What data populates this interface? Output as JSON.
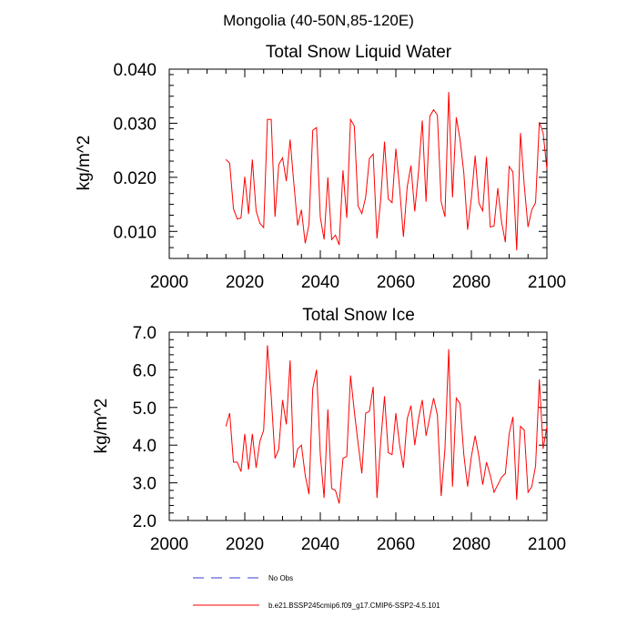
{
  "figure_title": "Mongolia (40-50N,85-120E)",
  "legend": {
    "obs_label": "No Obs",
    "obs_color": "#3b3bd6",
    "model_label": "b.e21.BSSP245cmip6.f09_g17.CMIP6-SSP2-4.5.101",
    "model_color": "#ff0000"
  },
  "chart_data": [
    {
      "type": "line",
      "title": "Total Snow Liquid Water",
      "xlabel": "",
      "ylabel": "kg/m^2",
      "xlim": [
        2000,
        2100
      ],
      "ylim": [
        0.005,
        0.04
      ],
      "xticks": [
        2000,
        2020,
        2040,
        2060,
        2080,
        2100
      ],
      "xtick_labels": [
        "2000",
        "2020",
        "2040",
        "2060",
        "2080",
        "2100"
      ],
      "yticks": [
        0.01,
        0.02,
        0.03,
        0.04
      ],
      "ytick_labels": [
        "0.010",
        "0.020",
        "0.030",
        "0.040"
      ],
      "color": "#ff0000",
      "series": [
        {
          "name": "b.e21.BSSP245cmip6.f09_g17.CMIP6-SSP2-4.5.101",
          "x_start": 2015,
          "values": [
            0.0233,
            0.0226,
            0.0142,
            0.0123,
            0.0125,
            0.0201,
            0.0132,
            0.0233,
            0.0138,
            0.0115,
            0.0107,
            0.0307,
            0.0307,
            0.0127,
            0.0224,
            0.0236,
            0.0193,
            0.027,
            0.0188,
            0.0111,
            0.014,
            0.0078,
            0.0113,
            0.0287,
            0.0292,
            0.0126,
            0.0085,
            0.02,
            0.0085,
            0.0093,
            0.0075,
            0.0213,
            0.0125,
            0.0307,
            0.0295,
            0.0147,
            0.0133,
            0.0163,
            0.0235,
            0.0243,
            0.0087,
            0.016,
            0.0266,
            0.016,
            0.0153,
            0.0253,
            0.018,
            0.009,
            0.0182,
            0.0222,
            0.0137,
            0.021,
            0.0305,
            0.0155,
            0.0313,
            0.0325,
            0.0315,
            0.0155,
            0.0127,
            0.0358,
            0.0163,
            0.0311,
            0.027,
            0.0208,
            0.0103,
            0.0162,
            0.024,
            0.0152,
            0.0138,
            0.0238,
            0.0108,
            0.011,
            0.018,
            0.0117,
            0.008,
            0.022,
            0.021,
            0.0065,
            0.0282,
            0.0185,
            0.0108,
            0.014,
            0.0153,
            0.0302,
            0.0282,
            0.0215
          ]
        }
      ]
    },
    {
      "type": "line",
      "title": "Total Snow Ice",
      "xlabel": "",
      "ylabel": "kg/m^2",
      "xlim": [
        2000,
        2100
      ],
      "ylim": [
        2.0,
        7.0
      ],
      "xticks": [
        2000,
        2020,
        2040,
        2060,
        2080,
        2100
      ],
      "xtick_labels": [
        "2000",
        "2020",
        "2040",
        "2060",
        "2080",
        "2100"
      ],
      "yticks": [
        2.0,
        3.0,
        4.0,
        5.0,
        6.0,
        7.0
      ],
      "ytick_labels": [
        "2.0",
        "3.0",
        "4.0",
        "5.0",
        "6.0",
        "7.0"
      ],
      "color": "#ff0000",
      "series": [
        {
          "name": "b.e21.BSSP245cmip6.f09_g17.CMIP6-SSP2-4.5.101",
          "x_start": 2015,
          "values": [
            4.5,
            4.85,
            3.55,
            3.55,
            3.3,
            4.3,
            3.35,
            4.3,
            3.4,
            4.1,
            4.4,
            6.65,
            5.3,
            3.65,
            3.9,
            5.2,
            4.55,
            6.25,
            3.4,
            3.9,
            4.0,
            3.2,
            2.7,
            5.5,
            6.0,
            3.75,
            2.6,
            4.95,
            2.85,
            2.8,
            2.45,
            3.65,
            3.7,
            5.85,
            4.9,
            4.05,
            3.25,
            4.85,
            4.9,
            5.55,
            2.6,
            4.1,
            5.3,
            3.8,
            3.75,
            4.85,
            4.0,
            3.4,
            4.7,
            5.05,
            4.0,
            4.7,
            5.2,
            4.25,
            4.75,
            5.25,
            4.8,
            2.65,
            3.9,
            6.55,
            2.9,
            5.25,
            5.1,
            3.75,
            2.9,
            3.7,
            4.25,
            3.7,
            2.95,
            3.55,
            3.2,
            2.75,
            2.95,
            3.15,
            3.25,
            4.3,
            4.75,
            2.55,
            4.5,
            4.4,
            2.75,
            2.9,
            3.45,
            5.75,
            3.9,
            4.5
          ]
        }
      ]
    }
  ]
}
